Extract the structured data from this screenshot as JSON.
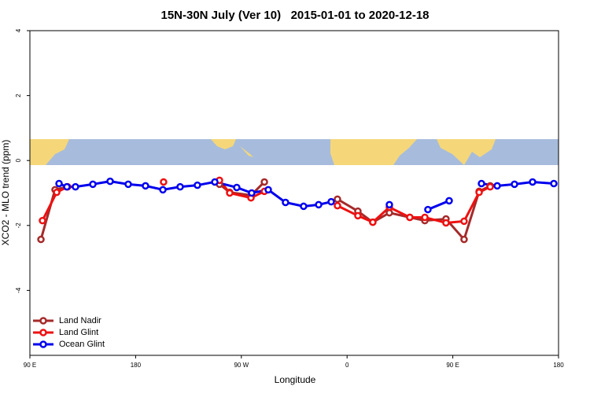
{
  "chart_data": {
    "type": "line",
    "title": "15N-30N July (Ver 10)   2015-01-01 to 2020-12-18",
    "x_label": "Longitude",
    "y_label": "XCO2 - MLO trend (ppm)",
    "xlim": [
      90,
      540
    ],
    "ylim": [
      -6,
      4
    ],
    "xticks": [
      {
        "value": 90,
        "label": "90 E"
      },
      180,
      {
        "value": 270,
        "label": "90 W"
      },
      {
        "value": 360,
        "label": "0"
      },
      {
        "value": 450,
        "label": "90 E"
      },
      {
        "value": 540,
        "label": "180"
      }
    ],
    "yticks": [
      -4,
      -2,
      0,
      2,
      4
    ],
    "legend": "bottom-left",
    "series": [
      {
        "name": "Land Nadir",
        "color": "#a52a2a",
        "x": [
          99.4,
          111.4,
          121.5,
          null,
          251.4,
          260.1,
          278.2,
          289.6,
          null,
          351.8,
          369.2,
          381.9,
          396,
          413.4,
          426.2,
          444.2,
          459.6,
          472.4,
          481.8
        ],
        "values": [
          -2.43,
          -0.9,
          -0.81,
          null,
          -0.73,
          -0.98,
          -1.07,
          -0.66,
          null,
          -1.19,
          -1.56,
          -1.9,
          -1.61,
          -1.75,
          -1.85,
          -1.8,
          -2.43,
          -0.95,
          -0.78
        ]
      },
      {
        "name": "Land Glint",
        "color": "#ee1111",
        "x": [
          100.7,
          112.8,
          122.1,
          null,
          203.8,
          null,
          251.4,
          260.1,
          278.2,
          289.6,
          null,
          351.8,
          369.2,
          381.9,
          396,
          413.4,
          426.2,
          444.2,
          459.6,
          472.4,
          481.8
        ],
        "values": [
          -1.85,
          -0.98,
          -0.81,
          null,
          -0.66,
          null,
          -0.61,
          -1.0,
          -1.15,
          -0.95,
          null,
          -1.39,
          -1.7,
          -1.9,
          -1.44,
          -1.75,
          -1.75,
          -1.92,
          -1.87,
          -0.98,
          -0.81
        ]
      },
      {
        "name": "Ocean Glint",
        "color": "#0000ee",
        "x": [
          114.8,
          121.5,
          128.8,
          143.6,
          158.3,
          173.7,
          188.4,
          203.2,
          217.9,
          232.6,
          247.4,
          266.1,
          278.8,
          292.9,
          307.6,
          323,
          335.8,
          346.5,
          null,
          396,
          null,
          428.8,
          446.9,
          null,
          474.4,
          487.8,
          502.5,
          517.9,
          536
        ],
        "values": [
          -0.71,
          -0.81,
          -0.81,
          -0.73,
          -0.64,
          -0.73,
          -0.78,
          -0.9,
          -0.81,
          -0.76,
          -0.66,
          -0.83,
          -1.0,
          -0.9,
          -1.29,
          -1.41,
          -1.36,
          -1.27,
          null,
          -1.36,
          null,
          -1.51,
          -1.24,
          null,
          -0.71,
          -0.78,
          -0.73,
          -0.66,
          -0.71
        ]
      }
    ]
  }
}
